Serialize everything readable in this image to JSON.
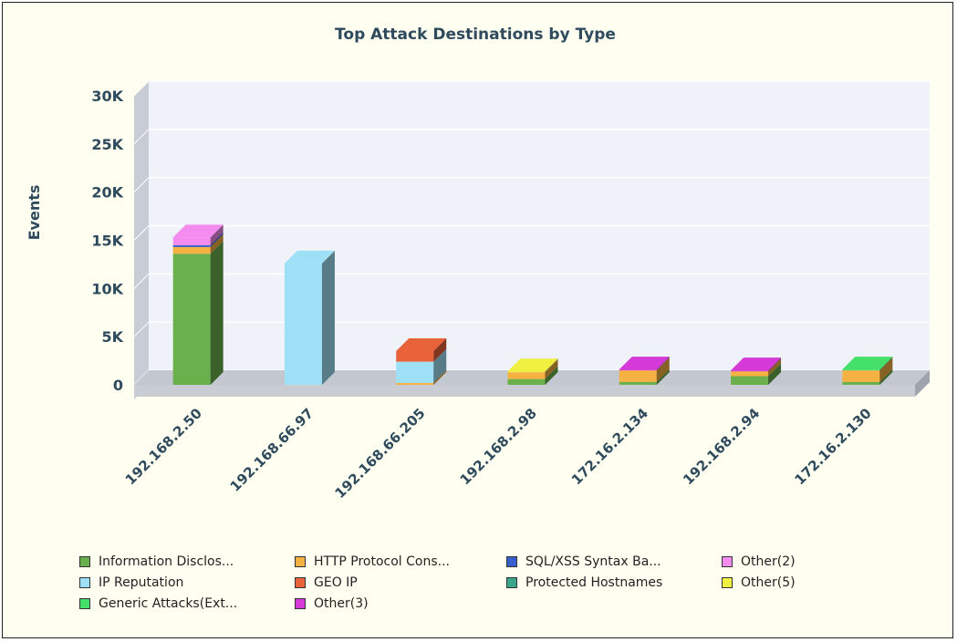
{
  "chart_data": {
    "type": "bar",
    "stacked": true,
    "title": "Top Attack Destinations by Type",
    "xlabel": "",
    "ylabel": "Events",
    "ylim": [
      0,
      30000
    ],
    "yticks": [
      0,
      5000,
      10000,
      15000,
      20000,
      25000,
      30000
    ],
    "ytick_labels": [
      "0",
      "5K",
      "10K",
      "15K",
      "20K",
      "25K",
      "30K"
    ],
    "categories": [
      "192.168.2.50",
      "192.168.66.97",
      "192.168.66.205",
      "192.168.2.98",
      "172.16.2.134",
      "192.168.2.94",
      "172.16.2.130"
    ],
    "legend_position": "bottom",
    "grid": true,
    "series": [
      {
        "name": "Information Disclos...",
        "color": "#6ab04c",
        "values": [
          13600,
          0,
          0,
          600,
          300,
          900,
          300
        ]
      },
      {
        "name": "HTTP Protocol Cons...",
        "color": "#f5b141",
        "values": [
          700,
          0,
          200,
          700,
          1200,
          500,
          1200
        ]
      },
      {
        "name": "SQL/XSS Syntax Ba...",
        "color": "#3a5fcd",
        "values": [
          200,
          0,
          0,
          0,
          0,
          0,
          0
        ]
      },
      {
        "name": "Other(2)",
        "color": "#f48cf0",
        "values": [
          800,
          0,
          0,
          0,
          0,
          0,
          0
        ]
      },
      {
        "name": "IP Reputation",
        "color": "#9ee1f7",
        "values": [
          0,
          12600,
          2200,
          0,
          0,
          0,
          0
        ]
      },
      {
        "name": "GEO IP",
        "color": "#e8633a",
        "values": [
          0,
          0,
          1100,
          0,
          0,
          0,
          0
        ]
      },
      {
        "name": "Protected Hostnames",
        "color": "#3aa58a",
        "values": [
          0,
          0,
          0,
          0,
          0,
          0,
          0
        ]
      },
      {
        "name": "Other(5)",
        "color": "#f0f040",
        "values": [
          0,
          0,
          0,
          100,
          0,
          0,
          0
        ]
      },
      {
        "name": "Generic Attacks(Ext...",
        "color": "#44e06a",
        "values": [
          0,
          0,
          0,
          0,
          0,
          0,
          100
        ]
      },
      {
        "name": "Other(3)",
        "color": "#d53ad8",
        "values": [
          0,
          0,
          0,
          0,
          100,
          100,
          0
        ]
      }
    ]
  }
}
